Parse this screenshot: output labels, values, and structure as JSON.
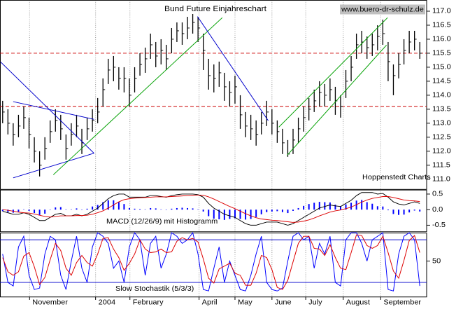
{
  "chart_data": [
    {
      "type": "ohlc",
      "title": "Bund Future Einjahreschart",
      "website": "www.buero-dr-schulz.de",
      "source_note": "Hoppenstedt Charts",
      "color": "#000000",
      "high": [
        113.8,
        113.5,
        113.0,
        113.3,
        113.6,
        113.2,
        112.5,
        112.0,
        112.5,
        113.1,
        113.5,
        113.3,
        112.6,
        113.0,
        113.3,
        112.8,
        113.2,
        113.5,
        113.9,
        114.6,
        115.3,
        115.4,
        115.0,
        115.0,
        114.6,
        115.0,
        115.5,
        115.7,
        116.2,
        115.9,
        116.0,
        115.8,
        116.4,
        116.6,
        116.6,
        116.8,
        116.9,
        116.8,
        116.2,
        115.3,
        115.1,
        115.2,
        114.8,
        114.5,
        114.7,
        114.0,
        113.4,
        113.3,
        113.1,
        113.4,
        113.8,
        113.5,
        113.1,
        112.8,
        112.4,
        112.8,
        113.2,
        113.6,
        113.9,
        114.2,
        114.5,
        114.4,
        114.6,
        114.3,
        114.0,
        114.9,
        115.4,
        116.2,
        116.3,
        116.1,
        116.2,
        116.5,
        116.7,
        115.9,
        115.1,
        115.5,
        116.0,
        116.3,
        116.3,
        115.9
      ],
      "low": [
        113.0,
        112.6,
        112.2,
        112.5,
        112.8,
        112.1,
        111.6,
        111.1,
        111.7,
        112.3,
        112.7,
        112.4,
        111.7,
        112.2,
        112.5,
        111.9,
        112.4,
        112.7,
        113.0,
        113.6,
        114.4,
        114.5,
        114.2,
        114.1,
        113.6,
        114.1,
        114.7,
        114.8,
        115.3,
        115.0,
        115.1,
        114.9,
        115.5,
        115.9,
        115.8,
        116.0,
        116.2,
        115.9,
        114.9,
        114.2,
        114.1,
        114.3,
        113.8,
        113.6,
        113.7,
        112.8,
        112.5,
        112.4,
        112.2,
        112.6,
        112.9,
        112.6,
        112.3,
        111.9,
        111.8,
        111.9,
        112.3,
        112.7,
        113.1,
        113.4,
        113.6,
        113.6,
        113.8,
        113.3,
        113.2,
        113.9,
        114.5,
        115.3,
        115.5,
        115.3,
        115.4,
        115.6,
        115.8,
        114.5,
        114.0,
        114.6,
        115.1,
        115.5,
        115.6,
        115.3
      ],
      "close": [
        113.4,
        113.0,
        112.6,
        112.9,
        113.2,
        112.6,
        112.0,
        111.5,
        112.1,
        112.7,
        113.1,
        112.8,
        112.1,
        112.6,
        112.9,
        112.3,
        112.8,
        113.1,
        113.4,
        114.2,
        114.9,
        115.0,
        114.6,
        114.6,
        114.0,
        114.6,
        115.1,
        115.3,
        115.8,
        115.4,
        115.6,
        115.3,
        116.0,
        116.3,
        116.2,
        116.4,
        116.6,
        116.4,
        115.6,
        114.7,
        114.6,
        114.8,
        114.3,
        114.1,
        114.3,
        113.3,
        112.9,
        112.8,
        112.6,
        113.0,
        113.4,
        113.0,
        112.7,
        112.3,
        111.9,
        112.4,
        112.8,
        113.2,
        113.5,
        113.8,
        114.1,
        114.0,
        114.2,
        113.8,
        113.6,
        114.5,
        115.0,
        115.8,
        115.9,
        115.7,
        115.8,
        116.1,
        116.2,
        115.2,
        114.7,
        115.1,
        115.6,
        115.9,
        116.0,
        115.5
      ],
      "ylim": [
        110.65,
        117.4
      ],
      "yticks": [
        {
          "value": 111,
          "label": "111.0"
        },
        111.5,
        {
          "value": 112,
          "label": "112.0"
        },
        112.5,
        {
          "value": 113,
          "label": "113.0"
        },
        113.5,
        {
          "value": 114,
          "label": "114.0"
        },
        114.5,
        {
          "value": 115,
          "label": "115.0"
        },
        115.5,
        {
          "value": 116,
          "label": "116.0"
        },
        116.5,
        {
          "value": 117,
          "label": "117.0"
        }
      ],
      "reference_lines": [
        {
          "value": 115.5,
          "color": "#cc0000"
        },
        {
          "value": 113.6,
          "color": "#cc0000"
        }
      ],
      "trendlines": [
        {
          "x": [
            -0.4,
            17.3
          ],
          "y": [
            115.19,
            111.93
          ],
          "color": "#0000cc"
        },
        {
          "x": [
            2,
            17.3
          ],
          "y": [
            113.77,
            113.14
          ],
          "color": "#0000cc"
        },
        {
          "x": [
            2,
            17.3
          ],
          "y": [
            111.05,
            111.93
          ],
          "color": "#0000cc"
        },
        {
          "x": [
            9.6,
            41.6
          ],
          "y": [
            111.16,
            116.77
          ],
          "color": "#00a000"
        },
        {
          "x": [
            36.9,
            50.3
          ],
          "y": [
            116.81,
            113.09
          ],
          "color": "#0000cc"
        },
        {
          "x": [
            53.9,
            72.7
          ],
          "y": [
            111.86,
            115.79
          ],
          "color": "#00a000"
        },
        {
          "x": [
            52.3,
            72.9
          ],
          "y": [
            112.86,
            116.77
          ],
          "color": "#00a000"
        }
      ]
    },
    {
      "type": "macd",
      "label": "MACD (12/26/9) mit Histogramm",
      "histogram": {
        "color": "#0000ff",
        "values": [
          -0.05,
          -0.08,
          -0.1,
          -0.07,
          0,
          -0.04,
          -0.11,
          -0.17,
          -0.13,
          -0.01,
          0.07,
          0.08,
          0,
          0,
          0.04,
          -0.01,
          0.03,
          0.1,
          0.15,
          0.24,
          0.3,
          0.3,
          0.25,
          0.18,
          0.05,
          0.03,
          0.02,
          0.01,
          0.05,
          0.04,
          0.01,
          -0.01,
          0.03,
          0.05,
          0.06,
          0.05,
          0.04,
          0.01,
          -0.06,
          -0.21,
          -0.29,
          -0.31,
          -0.33,
          -0.3,
          -0.28,
          -0.3,
          -0.32,
          -0.3,
          -0.24,
          -0.15,
          -0.08,
          -0.06,
          -0.05,
          -0.08,
          -0.11,
          -0.04,
          0.05,
          0.12,
          0.18,
          0.22,
          0.25,
          0.24,
          0.23,
          0.16,
          0.11,
          0.17,
          0.22,
          0.29,
          0.31,
          0.24,
          0.19,
          0.11,
          0.1,
          -0.02,
          -0.14,
          -0.17,
          -0.16,
          -0.09,
          -0.03,
          -0.06
        ]
      },
      "series": [
        {
          "color": "#000000",
          "values": [
            -0.05,
            -0.1,
            -0.15,
            -0.15,
            -0.1,
            -0.15,
            -0.25,
            -0.35,
            -0.35,
            -0.25,
            -0.15,
            -0.12,
            -0.2,
            -0.2,
            -0.15,
            -0.2,
            -0.15,
            -0.05,
            0.05,
            0.2,
            0.35,
            0.45,
            0.5,
            0.5,
            0.4,
            0.4,
            0.4,
            0.4,
            0.45,
            0.45,
            0.42,
            0.4,
            0.45,
            0.48,
            0.5,
            0.5,
            0.5,
            0.48,
            0.4,
            0.2,
            0.05,
            -0.05,
            -0.15,
            -0.2,
            -0.25,
            -0.35,
            -0.45,
            -0.5,
            -0.5,
            -0.45,
            -0.4,
            -0.4,
            -0.4,
            -0.45,
            -0.5,
            -0.45,
            -0.35,
            -0.25,
            -0.15,
            -0.05,
            0.05,
            0.1,
            0.15,
            0.12,
            0.1,
            0.2,
            0.3,
            0.45,
            0.55,
            0.55,
            0.55,
            0.5,
            0.52,
            0.4,
            0.25,
            0.18,
            0.15,
            0.2,
            0.25,
            0.2
          ]
        },
        {
          "color": "#dd0000",
          "values": [
            0.0,
            -0.02,
            -0.05,
            -0.08,
            -0.1,
            -0.11,
            -0.14,
            -0.18,
            -0.22,
            -0.24,
            -0.22,
            -0.2,
            -0.2,
            -0.2,
            -0.19,
            -0.19,
            -0.18,
            -0.15,
            -0.1,
            -0.04,
            0.05,
            0.15,
            0.25,
            0.32,
            0.35,
            0.37,
            0.38,
            0.39,
            0.4,
            0.41,
            0.41,
            0.41,
            0.42,
            0.43,
            0.44,
            0.45,
            0.46,
            0.47,
            0.46,
            0.41,
            0.34,
            0.26,
            0.18,
            0.1,
            0.03,
            -0.05,
            -0.13,
            -0.2,
            -0.26,
            -0.3,
            -0.32,
            -0.34,
            -0.35,
            -0.37,
            -0.39,
            -0.41,
            -0.4,
            -0.37,
            -0.33,
            -0.27,
            -0.2,
            -0.14,
            -0.08,
            -0.04,
            -0.01,
            0.03,
            0.08,
            0.16,
            0.24,
            0.31,
            0.36,
            0.39,
            0.42,
            0.42,
            0.39,
            0.35,
            0.31,
            0.29,
            0.28,
            0.26
          ]
        }
      ],
      "ylim": [
        -0.7,
        0.64
      ],
      "yticks": [
        0.5,
        {
          "value": 0,
          "label": "0.0"
        },
        -0.5
      ]
    },
    {
      "type": "line",
      "label": "Slow Stochastik (5/3/3)",
      "series": [
        {
          "color": "#0000ff",
          "values": [
            60,
            20,
            15,
            70,
            85,
            30,
            10,
            12,
            60,
            85,
            80,
            30,
            10,
            50,
            85,
            40,
            20,
            70,
            90,
            85,
            75,
            40,
            50,
            20,
            70,
            90,
            80,
            30,
            75,
            85,
            40,
            60,
            90,
            85,
            75,
            80,
            90,
            60,
            10,
            8,
            40,
            70,
            20,
            50,
            30,
            10,
            8,
            30,
            60,
            85,
            20,
            10,
            8,
            12,
            50,
            85,
            90,
            80,
            85,
            40,
            75,
            60,
            85,
            20,
            15,
            80,
            90,
            90,
            75,
            50,
            80,
            85,
            90,
            10,
            8,
            60,
            85,
            90,
            80,
            15
          ]
        },
        {
          "color": "#dd0000",
          "values": [
            55,
            35,
            30,
            35,
            57,
            62,
            42,
            17,
            27,
            52,
            75,
            65,
            40,
            30,
            48,
            58,
            48,
            43,
            60,
            82,
            83,
            67,
            55,
            37,
            47,
            60,
            80,
            67,
            62,
            63,
            67,
            62,
            63,
            78,
            83,
            80,
            82,
            77,
            53,
            26,
            19,
            39,
            43,
            47,
            33,
            30,
            16,
            16,
            33,
            58,
            55,
            38,
            13,
            10,
            23,
            49,
            75,
            85,
            85,
            68,
            67,
            58,
            73,
            55,
            40,
            38,
            62,
            87,
            86,
            72,
            68,
            72,
            85,
            62,
            36,
            26,
            51,
            79,
            86,
            62
          ]
        }
      ],
      "bands": [
        80,
        20
      ],
      "band_color": "#0000cc",
      "ylim": [
        0,
        90
      ],
      "yticks": [
        50
      ],
      "xticks": [
        {
          "value": 5.1,
          "label": "November"
        },
        {
          "value": 17.6,
          "label": "2004"
        },
        {
          "value": 24.1,
          "label": "February"
        },
        {
          "value": 37.2,
          "label": "April"
        },
        {
          "value": 44,
          "label": "May"
        },
        {
          "value": 51,
          "label": "June"
        },
        {
          "value": 57.4,
          "label": "July"
        },
        {
          "value": 64.5,
          "label": "August"
        },
        {
          "value": 71.6,
          "label": "September"
        }
      ]
    }
  ]
}
